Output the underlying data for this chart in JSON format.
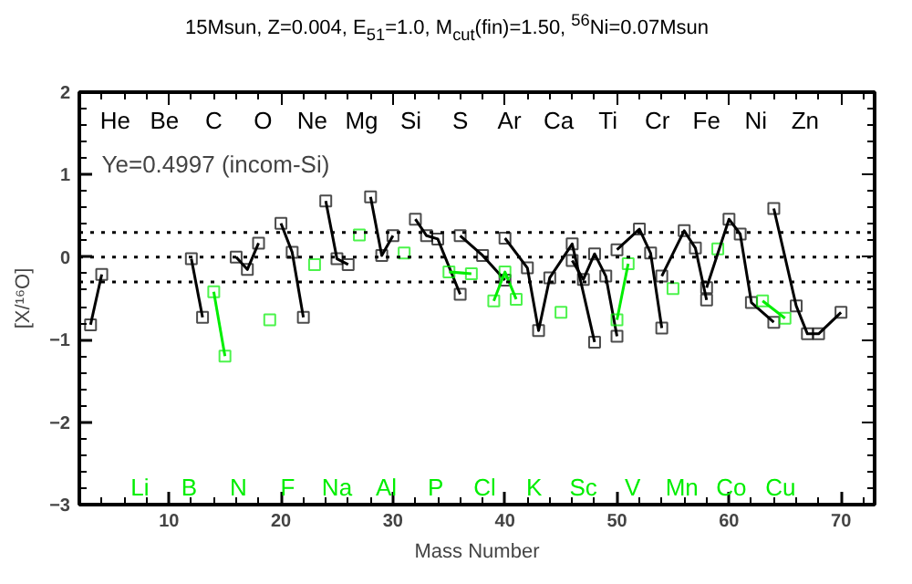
{
  "chart_data": {
    "type": "line",
    "title": "15Msun, Z=0.004, E$_{51}$=1.0, M$_{cut}$(fin)=1.50, $^{56}$Ni=0.07Msun",
    "xlabel": "Mass Number",
    "ylabel": "[X/¹⁶O]",
    "xlim": [
      2,
      73
    ],
    "ylim": [
      -3,
      2
    ],
    "xticks": [
      10,
      20,
      30,
      40,
      50,
      60,
      70
    ],
    "yticks": [
      -3,
      -2,
      -1,
      0,
      1,
      2
    ],
    "grid": false,
    "marker": "square",
    "line_style": "solid",
    "annotations": [
      "He",
      "Li",
      "Be",
      "B",
      "C",
      "N",
      "O",
      "F",
      "Ne",
      "Na",
      "Mg",
      "Al",
      "Si",
      "P",
      "S",
      "Cl",
      "Ar",
      "K",
      "Ca",
      "Sc",
      "Ti",
      "V",
      "Cr",
      "Mn",
      "Fe",
      "Co",
      "Ni",
      "Cu",
      "Zn",
      "Ye=0.4997 (incom-Si)"
    ],
    "ref_lines": [
      {
        "axis": "y",
        "value": 0.3,
        "line_style": "dotted",
        "color": "#000000"
      },
      {
        "axis": "y",
        "value": 0,
        "line_style": "dotted",
        "color": "#000000"
      },
      {
        "axis": "y",
        "value": -0.3,
        "line_style": "dotted",
        "color": "#000000"
      }
    ],
    "series": [
      {
        "color": "#000000",
        "x": [
          3,
          4
        ],
        "values": [
          -0.82,
          -0.21
        ]
      },
      {
        "color": "#00ee00"
      },
      {
        "color": "#000000"
      },
      {
        "color": "#00ee00"
      },
      {
        "color": "#000000",
        "x": [
          12,
          13
        ],
        "values": [
          -0.02,
          -0.73
        ]
      },
      {
        "color": "#00ee00",
        "x": [
          14,
          15
        ],
        "values": [
          -0.42,
          -1.2
        ]
      },
      {
        "color": "#000000",
        "x": [
          16,
          17,
          18
        ],
        "values": [
          0.0,
          -0.15,
          0.17
        ]
      },
      {
        "color": "#00ee00",
        "x": [
          19
        ],
        "values": [
          -0.76
        ]
      },
      {
        "color": "#000000",
        "x": [
          20,
          21,
          22
        ],
        "values": [
          0.41,
          0.06,
          -0.73
        ]
      },
      {
        "color": "#00ee00",
        "x": [
          23
        ],
        "values": [
          -0.09
        ]
      },
      {
        "color": "#000000",
        "x": [
          24,
          25,
          26
        ],
        "values": [
          0.68,
          -0.02,
          -0.09
        ]
      },
      {
        "color": "#00ee00",
        "x": [
          27
        ],
        "values": [
          0.27
        ]
      },
      {
        "color": "#000000",
        "x": [
          28,
          29,
          30
        ],
        "values": [
          0.73,
          0.02,
          0.26
        ]
      },
      {
        "color": "#00ee00",
        "x": [
          31
        ],
        "values": [
          0.05
        ]
      },
      {
        "color": "#000000",
        "x": [
          32,
          33,
          34,
          36
        ],
        "values": [
          0.46,
          0.26,
          0.22,
          -0.45
        ]
      },
      {
        "color": "#00ee00",
        "x": [
          35,
          37
        ],
        "values": [
          -0.18,
          -0.2
        ]
      },
      {
        "color": "#000000",
        "x": [
          36,
          38,
          40
        ],
        "values": [
          0.26,
          0.02,
          -0.28
        ]
      },
      {
        "color": "#00ee00",
        "x": [
          39,
          40,
          41
        ],
        "values": [
          -0.53,
          -0.18,
          -0.51
        ]
      },
      {
        "color": "#000000",
        "x": [
          40,
          42,
          43,
          44,
          46,
          48
        ],
        "values": [
          0.23,
          -0.13,
          -0.89,
          -0.25,
          0.16,
          -1.03
        ]
      },
      {
        "color": "#00ee00",
        "x": [
          45
        ],
        "values": [
          -0.67
        ]
      },
      {
        "color": "#000000",
        "x": [
          46,
          47,
          48,
          49,
          50
        ],
        "values": [
          -0.04,
          -0.27,
          0.04,
          -0.23,
          -0.96
        ]
      },
      {
        "color": "#00ee00",
        "x": [
          50,
          51
        ],
        "values": [
          -0.76,
          -0.08
        ]
      },
      {
        "color": "#000000",
        "x": [
          50,
          52,
          53,
          54
        ],
        "values": [
          0.09,
          0.34,
          0.05,
          -0.86
        ]
      },
      {
        "color": "#00ee00",
        "x": [
          55
        ],
        "values": [
          -0.38
        ]
      },
      {
        "color": "#000000",
        "x": [
          54,
          56,
          57,
          58
        ],
        "values": [
          -0.23,
          0.32,
          0.11,
          -0.52
        ]
      },
      {
        "color": "#00ee00",
        "x": [
          59
        ],
        "values": [
          0.1
        ]
      },
      {
        "color": "#000000",
        "x": [
          58,
          60,
          61,
          62,
          64
        ],
        "values": [
          -0.37,
          0.46,
          0.28,
          -0.55,
          -0.79
        ]
      },
      {
        "color": "#00ee00",
        "x": [
          63,
          65
        ],
        "values": [
          -0.53,
          -0.74
        ]
      },
      {
        "color": "#000000",
        "x": [
          64,
          66,
          67,
          68,
          70
        ],
        "values": [
          0.59,
          -0.59,
          -0.93,
          -0.93,
          -0.67
        ]
      }
    ]
  }
}
